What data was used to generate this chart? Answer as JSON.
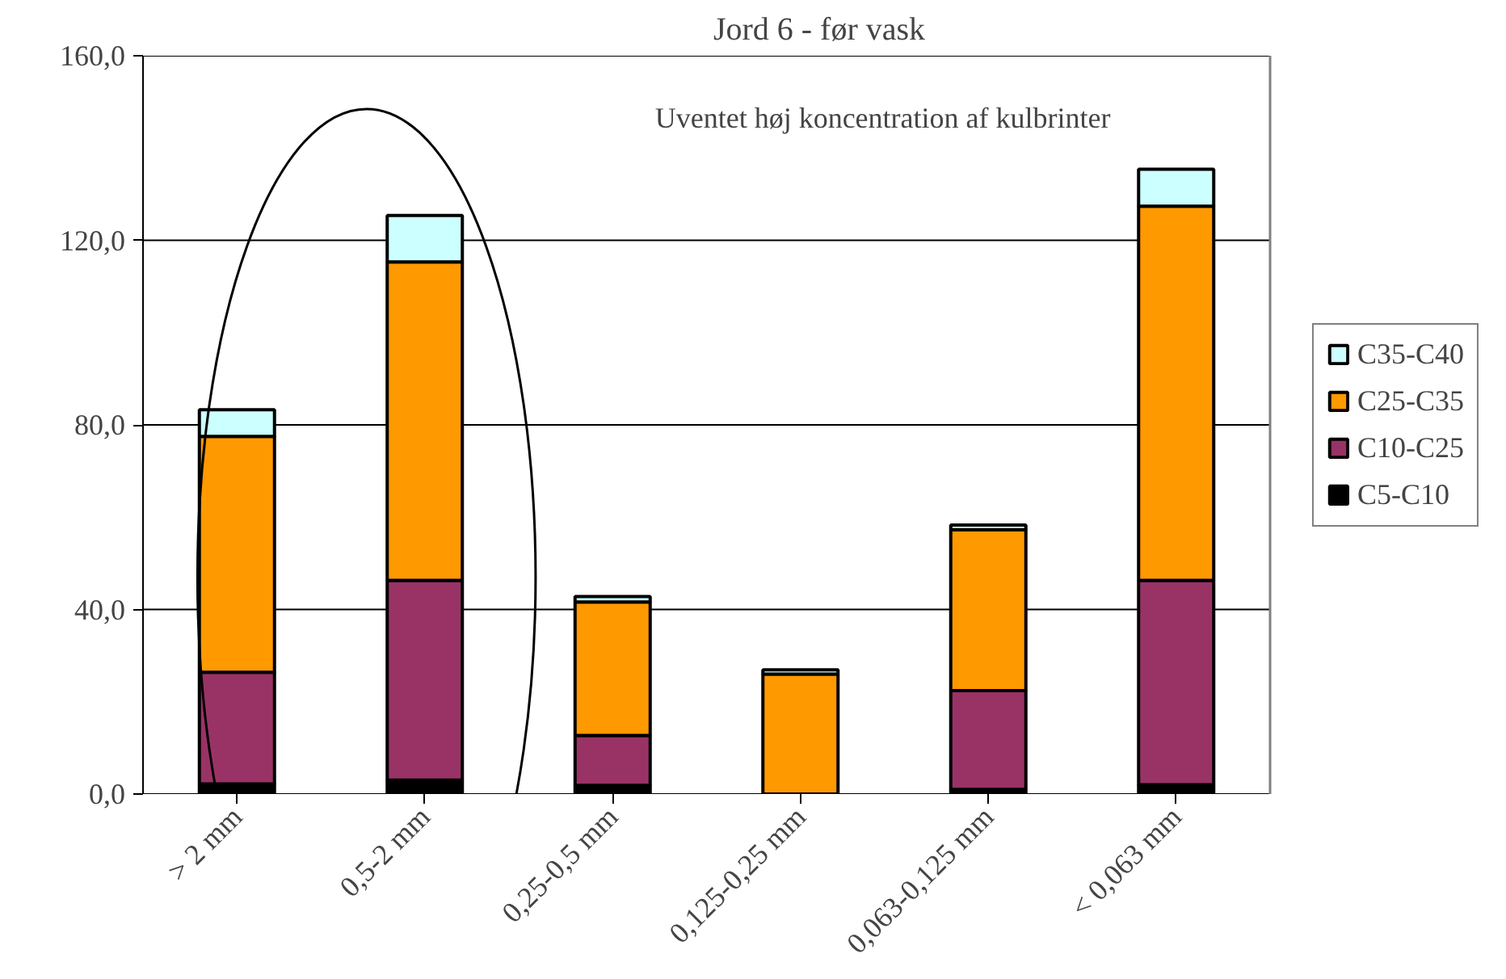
{
  "chart_data": {
    "type": "bar",
    "title": "Jord 6 - før vask",
    "stacked": true,
    "categories": [
      "> 2 mm",
      "0,5-2 mm",
      "0,25-0,5 mm",
      "0,125-0,25 mm",
      "0,063-0,125 mm",
      "< 0,063 mm"
    ],
    "series": [
      {
        "name": "C5-C10",
        "color": "#000000",
        "values": [
          2.2,
          3.0,
          1.9,
          null,
          1.0,
          2.0
        ]
      },
      {
        "name": "C10-C25",
        "color": "#993366",
        "values": [
          24.2,
          43.3,
          10.8,
          null,
          21.4,
          44.3
        ]
      },
      {
        "name": "C25-C35",
        "color": "#ff9900",
        "values": [
          51.1,
          69.0,
          28.9,
          26.0,
          34.9,
          81.1
        ]
      },
      {
        "name": "C35-C40",
        "color": "#ccffff",
        "values": [
          5.8,
          10.1,
          1.2,
          0.9,
          1.0,
          8.0
        ]
      }
    ],
    "ylim": [
      0,
      160
    ],
    "yticks": [
      {
        "value": 0,
        "label": "0,0"
      },
      {
        "value": 40,
        "label": "40,0"
      },
      {
        "value": 80,
        "label": "80,0"
      },
      {
        "value": 120,
        "label": "120,0"
      },
      {
        "value": 160,
        "label": "160,0"
      }
    ],
    "grid": "y",
    "legend": "right",
    "annotations": [
      "Uventet høj koncentration af kulbrinter"
    ]
  }
}
